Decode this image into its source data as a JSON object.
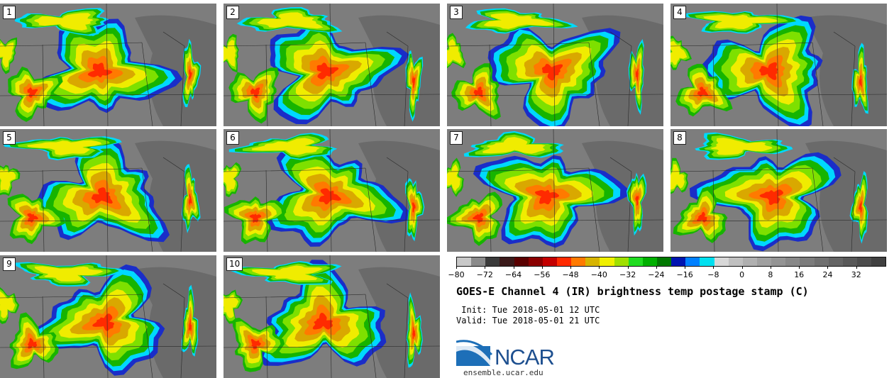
{
  "panels": [
    {
      "label": "1"
    },
    {
      "label": "2"
    },
    {
      "label": "3"
    },
    {
      "label": "4"
    },
    {
      "label": "5"
    },
    {
      "label": "6"
    },
    {
      "label": "7"
    },
    {
      "label": "8"
    },
    {
      "label": "9"
    },
    {
      "label": "10"
    }
  ],
  "colorbar": {
    "ticks": [
      "−80",
      "−72",
      "−64",
      "−56",
      "−48",
      "−40",
      "−32",
      "−24",
      "−16",
      "−8",
      "0",
      "8",
      "16",
      "24",
      "32"
    ],
    "tick_values": [
      -80,
      -72,
      -64,
      -56,
      -48,
      -40,
      -32,
      -24,
      -16,
      -8,
      0,
      8,
      16,
      24,
      32
    ],
    "range": [
      -80,
      40
    ],
    "colors": [
      "#c8c8c8",
      "#8a8a8a",
      "#3a3a3a",
      "#3a1a1a",
      "#5a0000",
      "#8b0000",
      "#c40000",
      "#ff2a00",
      "#ff7a00",
      "#d7b400",
      "#f0f000",
      "#a0e000",
      "#20dc20",
      "#00b000",
      "#007800",
      "#0014b0",
      "#0080ff",
      "#00e0f0",
      "#d8d8d8",
      "#c0c0c0",
      "#b0b0b0",
      "#a0a0a0",
      "#949494",
      "#888888",
      "#7c7c7c",
      "#707070",
      "#646464",
      "#585858",
      "#4c4c4c",
      "#404040"
    ]
  },
  "title": "GOES-E Channel 4 (IR) brightness temp postage stamp (C)",
  "init_text": " Init: Tue 2018-05-01 12 UTC",
  "valid_text": "Valid: Tue 2018-05-01 21 UTC",
  "logo_text": "NCAR",
  "url": "ensemble.ucar.edu"
}
